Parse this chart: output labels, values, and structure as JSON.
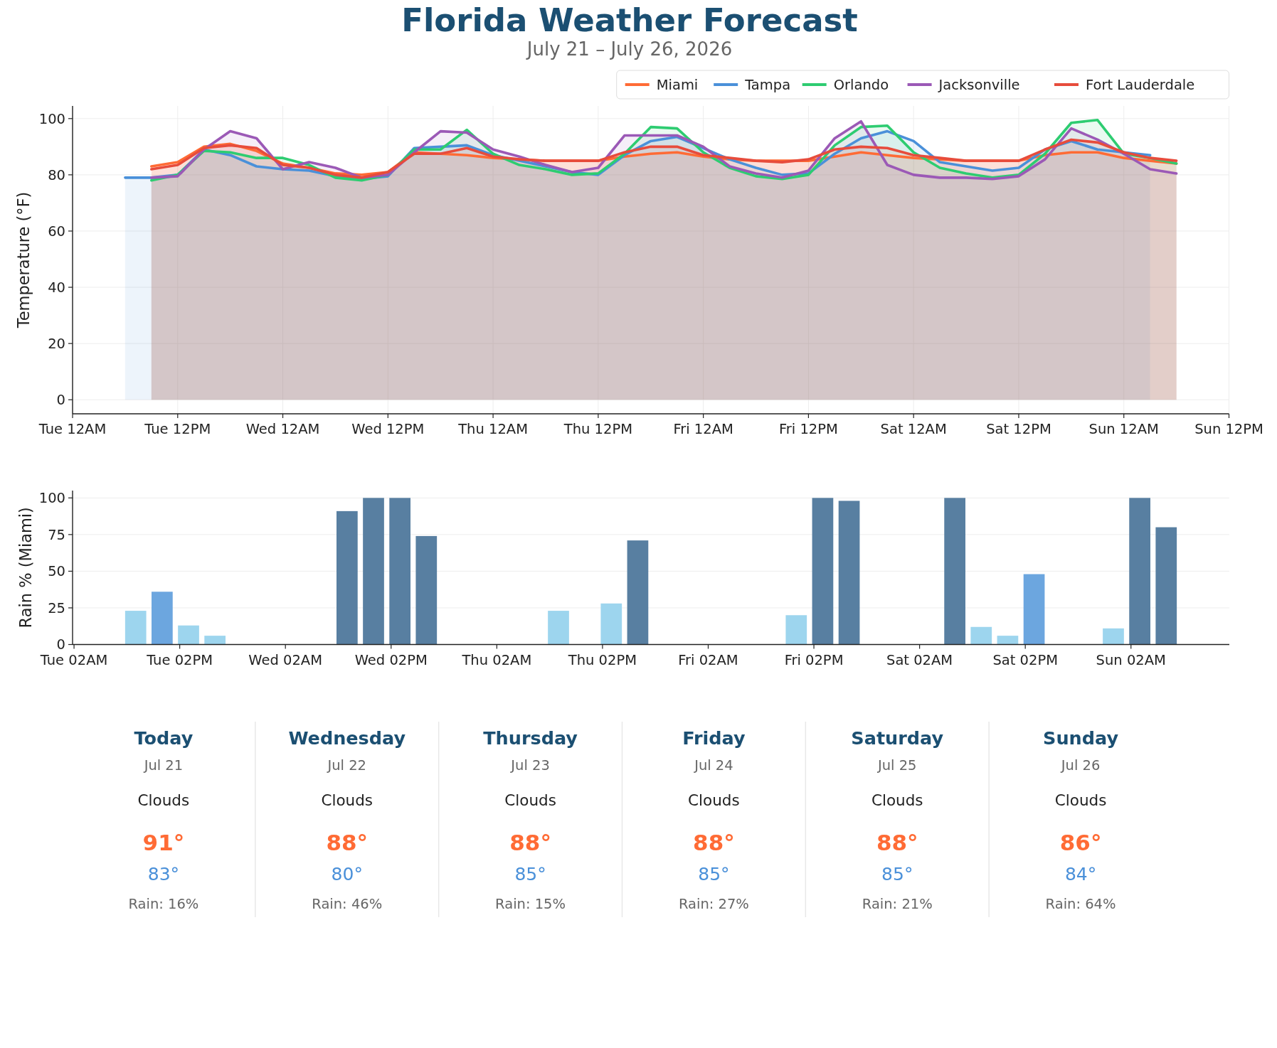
{
  "chart_data": [
    {
      "type": "area",
      "title": "Florida Weather Forecast",
      "subtitle": "July 21 – July 26, 2026",
      "ylabel": "Temperature (°F)",
      "x": [
        "2026-07-21T09:00",
        "2026-07-21T12:00",
        "2026-07-21T15:00",
        "2026-07-21T18:00",
        "2026-07-21T21:00",
        "2026-07-22T00:00",
        "2026-07-22T03:00",
        "2026-07-22T06:00",
        "2026-07-22T09:00",
        "2026-07-22T12:00",
        "2026-07-22T15:00",
        "2026-07-22T18:00",
        "2026-07-22T21:00",
        "2026-07-23T00:00",
        "2026-07-23T03:00",
        "2026-07-23T06:00",
        "2026-07-23T09:00",
        "2026-07-23T12:00",
        "2026-07-23T15:00",
        "2026-07-23T18:00",
        "2026-07-23T21:00",
        "2026-07-24T00:00",
        "2026-07-24T03:00",
        "2026-07-24T06:00",
        "2026-07-24T09:00",
        "2026-07-24T12:00",
        "2026-07-24T15:00",
        "2026-07-24T18:00",
        "2026-07-24T21:00",
        "2026-07-25T00:00",
        "2026-07-25T03:00",
        "2026-07-25T06:00",
        "2026-07-25T09:00",
        "2026-07-25T12:00",
        "2026-07-25T15:00",
        "2026-07-25T18:00",
        "2026-07-25T21:00",
        "2026-07-26T00:00",
        "2026-07-26T03:00",
        "2026-07-26T06:00"
      ],
      "series": [
        {
          "name": "Miami",
          "color": "#ff6b35",
          "values": [
            83,
            84.5,
            90,
            91,
            88.5,
            84,
            82.5,
            80.5,
            80,
            81,
            88,
            87.5,
            87,
            86,
            85.5,
            85,
            85,
            85,
            86.5,
            87.5,
            88,
            86.5,
            85.5,
            85,
            85,
            85,
            86.5,
            88,
            87,
            86,
            85.5,
            85,
            85,
            85,
            87,
            88,
            88,
            86,
            85,
            84
          ]
        },
        {
          "name": "Tampa",
          "color": "#4a90d9",
          "x": [
            "2026-07-21T06:00",
            "2026-07-21T09:00",
            "2026-07-21T12:00",
            "2026-07-21T15:00",
            "2026-07-21T18:00",
            "2026-07-21T21:00",
            "2026-07-22T00:00",
            "2026-07-22T03:00",
            "2026-07-22T06:00",
            "2026-07-22T09:00",
            "2026-07-22T12:00",
            "2026-07-22T15:00",
            "2026-07-22T18:00",
            "2026-07-22T21:00",
            "2026-07-23T00:00",
            "2026-07-23T03:00",
            "2026-07-23T06:00",
            "2026-07-23T09:00",
            "2026-07-23T12:00",
            "2026-07-23T15:00",
            "2026-07-23T18:00",
            "2026-07-23T21:00",
            "2026-07-24T00:00",
            "2026-07-24T03:00",
            "2026-07-24T06:00",
            "2026-07-24T09:00",
            "2026-07-24T12:00",
            "2026-07-24T15:00",
            "2026-07-24T18:00",
            "2026-07-24T21:00",
            "2026-07-25T00:00",
            "2026-07-25T03:00",
            "2026-07-25T06:00",
            "2026-07-25T09:00",
            "2026-07-25T12:00",
            "2026-07-25T15:00",
            "2026-07-25T18:00",
            "2026-07-25T21:00",
            "2026-07-26T00:00",
            "2026-07-26T03:00"
          ],
          "values": [
            79,
            79,
            80,
            89,
            87,
            83,
            82,
            81.5,
            79.5,
            78.5,
            79.5,
            89.5,
            90,
            90.5,
            87,
            85,
            83,
            81,
            80,
            87,
            92,
            93.5,
            89.5,
            85.5,
            82.5,
            80,
            80.5,
            87.5,
            93,
            95.5,
            92,
            84.5,
            83,
            81.5,
            82.5,
            89,
            92,
            89,
            88,
            87
          ]
        },
        {
          "name": "Orlando",
          "color": "#2ecc71",
          "values": [
            78,
            80,
            88.5,
            88,
            86,
            86,
            83.5,
            79,
            78,
            80,
            89,
            89,
            96,
            87.5,
            83.5,
            82,
            80,
            80.5,
            87.5,
            97,
            96.5,
            88,
            82.5,
            79.5,
            78.5,
            80,
            90.5,
            97,
            97.5,
            88,
            82.5,
            80.5,
            79,
            80,
            87.5,
            98.5,
            99.5,
            87.5,
            86,
            84
          ]
        },
        {
          "name": "Jacksonville",
          "color": "#9b59b6",
          "values": [
            79,
            79.5,
            89,
            95.5,
            93,
            82,
            84.5,
            82.5,
            79,
            80,
            88,
            95.5,
            95,
            89,
            86.5,
            83.5,
            81,
            82.5,
            94,
            94,
            94,
            90,
            83,
            80.5,
            79,
            81.5,
            93,
            99,
            83.5,
            80,
            79,
            79,
            78.5,
            79.5,
            85.5,
            96.5,
            92.5,
            87.5,
            82,
            80.5
          ]
        },
        {
          "name": "Fort Lauderdale",
          "color": "#e74c3c",
          "values": [
            82,
            83.5,
            89.5,
            90.5,
            89.5,
            83.5,
            82.5,
            80,
            79,
            81,
            87.5,
            87.5,
            89.5,
            86.5,
            85.5,
            85,
            85,
            85,
            88,
            90,
            90,
            87,
            86,
            85,
            84.5,
            85.5,
            89,
            90,
            89.5,
            87,
            86,
            85,
            85,
            85,
            89,
            92.5,
            91.5,
            88,
            86,
            85
          ]
        }
      ],
      "xlim": [
        "2026-07-21T00:00",
        "2026-07-26T12:00"
      ],
      "xticks": [
        {
          "value": "2026-07-21T00:00",
          "label": "Tue 12AM"
        },
        {
          "value": "2026-07-21T12:00",
          "label": "Tue 12PM"
        },
        {
          "value": "2026-07-22T00:00",
          "label": "Wed 12AM"
        },
        {
          "value": "2026-07-22T12:00",
          "label": "Wed 12PM"
        },
        {
          "value": "2026-07-23T00:00",
          "label": "Thu 12AM"
        },
        {
          "value": "2026-07-23T12:00",
          "label": "Thu 12PM"
        },
        {
          "value": "2026-07-24T00:00",
          "label": "Fri 12AM"
        },
        {
          "value": "2026-07-24T12:00",
          "label": "Fri 12PM"
        },
        {
          "value": "2026-07-25T00:00",
          "label": "Sat 12AM"
        },
        {
          "value": "2026-07-25T12:00",
          "label": "Sat 12PM"
        },
        {
          "value": "2026-07-26T00:00",
          "label": "Sun 12AM"
        },
        {
          "value": "2026-07-26T12:00",
          "label": "Sun 12PM"
        }
      ],
      "ylim": [
        -5,
        104.5
      ],
      "yticks": [
        0,
        20,
        40,
        60,
        80,
        100
      ],
      "grid": true,
      "legend": "top right"
    },
    {
      "type": "bar",
      "ylabel": "Rain % (Miami)",
      "x": [
        "2026-07-21T09:00",
        "2026-07-21T12:00",
        "2026-07-21T15:00",
        "2026-07-21T18:00",
        "2026-07-22T09:00",
        "2026-07-22T12:00",
        "2026-07-22T15:00",
        "2026-07-22T18:00",
        "2026-07-23T09:00",
        "2026-07-23T15:00",
        "2026-07-23T18:00",
        "2026-07-24T12:00",
        "2026-07-24T15:00",
        "2026-07-24T18:00",
        "2026-07-25T06:00",
        "2026-07-25T09:00",
        "2026-07-25T12:00",
        "2026-07-25T15:00",
        "2026-07-26T00:00",
        "2026-07-26T03:00",
        "2026-07-26T06:00"
      ],
      "values": [
        23,
        36,
        13,
        6,
        91,
        100,
        100,
        74,
        23,
        28,
        71,
        20,
        100,
        98,
        100,
        12,
        6,
        48,
        11,
        100,
        80
      ],
      "colors": [
        "#9dd5ee",
        "#6ca6df",
        "#9dd5ee",
        "#9dd5ee",
        "#587fa1",
        "#587fa1",
        "#587fa1",
        "#587fa1",
        "#9dd5ee",
        "#9dd5ee",
        "#587fa1",
        "#9dd5ee",
        "#587fa1",
        "#587fa1",
        "#587fa1",
        "#9dd5ee",
        "#9dd5ee",
        "#6ca6df",
        "#9dd5ee",
        "#587fa1",
        "#587fa1"
      ],
      "xlim": [
        "2026-07-21T01:50",
        "2026-07-26T13:10"
      ],
      "xticks": [
        {
          "value": "2026-07-21T02:00",
          "label": "Tue 02AM"
        },
        {
          "value": "2026-07-21T14:00",
          "label": "Tue 02PM"
        },
        {
          "value": "2026-07-22T02:00",
          "label": "Wed 02AM"
        },
        {
          "value": "2026-07-22T14:00",
          "label": "Wed 02PM"
        },
        {
          "value": "2026-07-23T02:00",
          "label": "Thu 02AM"
        },
        {
          "value": "2026-07-23T14:00",
          "label": "Thu 02PM"
        },
        {
          "value": "2026-07-24T02:00",
          "label": "Fri 02AM"
        },
        {
          "value": "2026-07-24T14:00",
          "label": "Fri 02PM"
        },
        {
          "value": "2026-07-25T02:00",
          "label": "Sat 02AM"
        },
        {
          "value": "2026-07-25T14:00",
          "label": "Sat 02PM"
        },
        {
          "value": "2026-07-26T02:00",
          "label": "Sun 02AM"
        }
      ],
      "ylim": [
        0,
        105
      ],
      "yticks": [
        0,
        25,
        50,
        75,
        100
      ],
      "grid": "y"
    },
    {
      "type": "other",
      "categories": [
        "Today",
        "Wednesday",
        "Thursday",
        "Friday",
        "Saturday",
        "Sunday"
      ],
      "annotations": [
        "Jul 21",
        "Clouds",
        "91°",
        "83°",
        "Rain: 16%",
        "Jul 22",
        "Clouds",
        "88°",
        "80°",
        "Rain: 46%",
        "Jul 23",
        "Clouds",
        "88°",
        "85°",
        "Rain: 15%",
        "Jul 24",
        "Clouds",
        "88°",
        "85°",
        "Rain: 27%",
        "Jul 25",
        "Clouds",
        "88°",
        "85°",
        "Rain: 21%",
        "Jul 26",
        "Clouds",
        "86°",
        "84°",
        "Rain: 64%"
      ]
    }
  ]
}
